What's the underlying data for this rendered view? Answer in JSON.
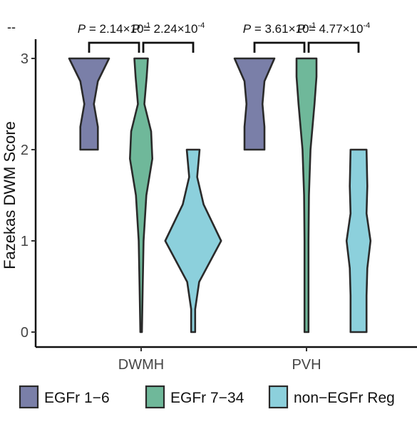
{
  "panel_tag": "--",
  "chart_data": {
    "type": "violin",
    "ylabel": "Fazekas DWM Score",
    "xlabel": "",
    "ylim": [
      0,
      3
    ],
    "yticks": [
      "0",
      "1",
      "2",
      "3"
    ],
    "categories": [
      "DWMH",
      "PVH"
    ],
    "legend_position": "bottom",
    "series": [
      {
        "name": "EGFr 1−6",
        "color": "#7a7fa8",
        "groups": [
          {
            "category": "DWMH",
            "min": 2,
            "max": 3,
            "density": [
              [
                2,
                0.22
              ],
              [
                2.25,
                0.22
              ],
              [
                2.5,
                0.12
              ],
              [
                2.75,
                0.22
              ],
              [
                3,
                0.5
              ]
            ]
          },
          {
            "category": "PVH",
            "min": 2,
            "max": 3,
            "density": [
              [
                2,
                0.25
              ],
              [
                2.25,
                0.25
              ],
              [
                2.5,
                0.2
              ],
              [
                2.75,
                0.25
              ],
              [
                3,
                0.5
              ]
            ]
          }
        ]
      },
      {
        "name": "EGFr 7−34",
        "color": "#6fb89a",
        "groups": [
          {
            "category": "DWMH",
            "min": 0,
            "max": 3,
            "density": [
              [
                0,
                0.02
              ],
              [
                0.5,
                0.04
              ],
              [
                1,
                0.06
              ],
              [
                1.5,
                0.13
              ],
              [
                1.9,
                0.28
              ],
              [
                2.2,
                0.25
              ],
              [
                2.5,
                0.08
              ],
              [
                2.8,
                0.14
              ],
              [
                3,
                0.17
              ]
            ]
          },
          {
            "category": "PVH",
            "min": 0,
            "max": 3,
            "density": [
              [
                0,
                0.05
              ],
              [
                0.5,
                0.05
              ],
              [
                1,
                0.05
              ],
              [
                1.5,
                0.06
              ],
              [
                2,
                0.1
              ],
              [
                2.5,
                0.2
              ],
              [
                2.8,
                0.25
              ],
              [
                3,
                0.25
              ]
            ]
          }
        ]
      },
      {
        "name": "non−EGFr Reg",
        "color": "#8cd0dc",
        "groups": [
          {
            "category": "DWMH",
            "min": 0,
            "max": 2,
            "density": [
              [
                0,
                0.05
              ],
              [
                0.25,
                0.05
              ],
              [
                0.55,
                0.15
              ],
              [
                1,
                0.7
              ],
              [
                1.4,
                0.26
              ],
              [
                1.7,
                0.1
              ],
              [
                2,
                0.16
              ]
            ]
          },
          {
            "category": "PVH",
            "min": 0,
            "max": 2,
            "density": [
              [
                0,
                0.2
              ],
              [
                0.4,
                0.2
              ],
              [
                0.7,
                0.22
              ],
              [
                1,
                0.3
              ],
              [
                1.3,
                0.2
              ],
              [
                1.6,
                0.22
              ],
              [
                2,
                0.2
              ]
            ]
          }
        ]
      }
    ],
    "comparisons": [
      {
        "category": "DWMH",
        "between": [
          "EGFr 1−6",
          "EGFr 7−34"
        ],
        "label_p": "P",
        "label_rest": " = 2.14×10",
        "label_exp": "-1"
      },
      {
        "category": "DWMH",
        "between": [
          "EGFr 7−34",
          "non−EGFr Reg"
        ],
        "label_p": "P",
        "label_rest": " = 2.24×10",
        "label_exp": "-4"
      },
      {
        "category": "PVH",
        "between": [
          "EGFr 1−6",
          "EGFr 7−34"
        ],
        "label_p": "P",
        "label_rest": " = 3.61×10",
        "label_exp": "-1"
      },
      {
        "category": "PVH",
        "between": [
          "EGFr 7−34",
          "non−EGFr Reg"
        ],
        "label_p": "P",
        "label_rest": " = 4.77×10",
        "label_exp": "-4"
      }
    ]
  }
}
